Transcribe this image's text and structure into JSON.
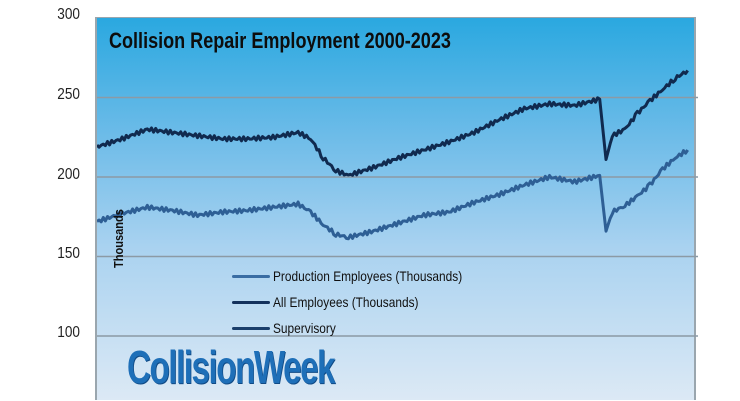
{
  "chart_data": {
    "type": "line",
    "title": "Collision Repair Employment 2000-2023",
    "xlabel": "",
    "ylabel": "Thousands",
    "ylim": [
      100,
      300
    ],
    "yticks": [
      100,
      150,
      200,
      250,
      300
    ],
    "grid": true,
    "legend_position": "lower-left inside",
    "x": [
      2000.0,
      2001.0,
      2002.0,
      2003.0,
      2004.0,
      2005.0,
      2006.0,
      2007.0,
      2008.0,
      2008.5,
      2009.0,
      2009.5,
      2010.0,
      2011.0,
      2012.0,
      2013.0,
      2014.0,
      2015.0,
      2016.0,
      2017.0,
      2018.0,
      2019.0,
      2020.0,
      2020.25,
      2020.5,
      2021.0,
      2021.5,
      2022.0,
      2022.5,
      2023.0,
      2023.5
    ],
    "series": [
      {
        "name": "Production Employees (Thousands)",
        "color": "#2e5f95",
        "values": [
          172,
          177,
          181,
          179,
          176,
          178,
          179,
          181,
          183,
          178,
          170,
          164,
          162,
          166,
          171,
          176,
          178,
          184,
          189,
          195,
          200,
          197,
          201,
          166,
          178,
          182,
          188,
          195,
          205,
          212,
          217
        ]
      },
      {
        "name": "All Employees (Thousands)",
        "color": "#102a4f",
        "values": [
          219,
          224,
          230,
          228,
          226,
          224,
          224,
          225,
          228,
          224,
          212,
          204,
          201,
          206,
          212,
          217,
          222,
          228,
          236,
          243,
          246,
          245,
          249,
          211,
          226,
          230,
          240,
          248,
          255,
          262,
          267
        ]
      },
      {
        "name": "Supervisory",
        "color": "#13315c",
        "values": []
      }
    ]
  },
  "axis": {
    "tick_labels": [
      "300",
      "250",
      "200",
      "150",
      "100"
    ]
  },
  "plot": {
    "title": "Collision Repair Employment 2000-2023",
    "ylabel": "Thousands"
  },
  "legend": [
    {
      "label": "Production Employees (Thousands)",
      "color": "#3a6da3"
    },
    {
      "label": "All Employees (Thousands)",
      "color": "#13315c"
    },
    {
      "label": "Supervisory",
      "color": "#1b3f6b"
    }
  ],
  "brand": {
    "logo_text": "CollisionWeek"
  }
}
